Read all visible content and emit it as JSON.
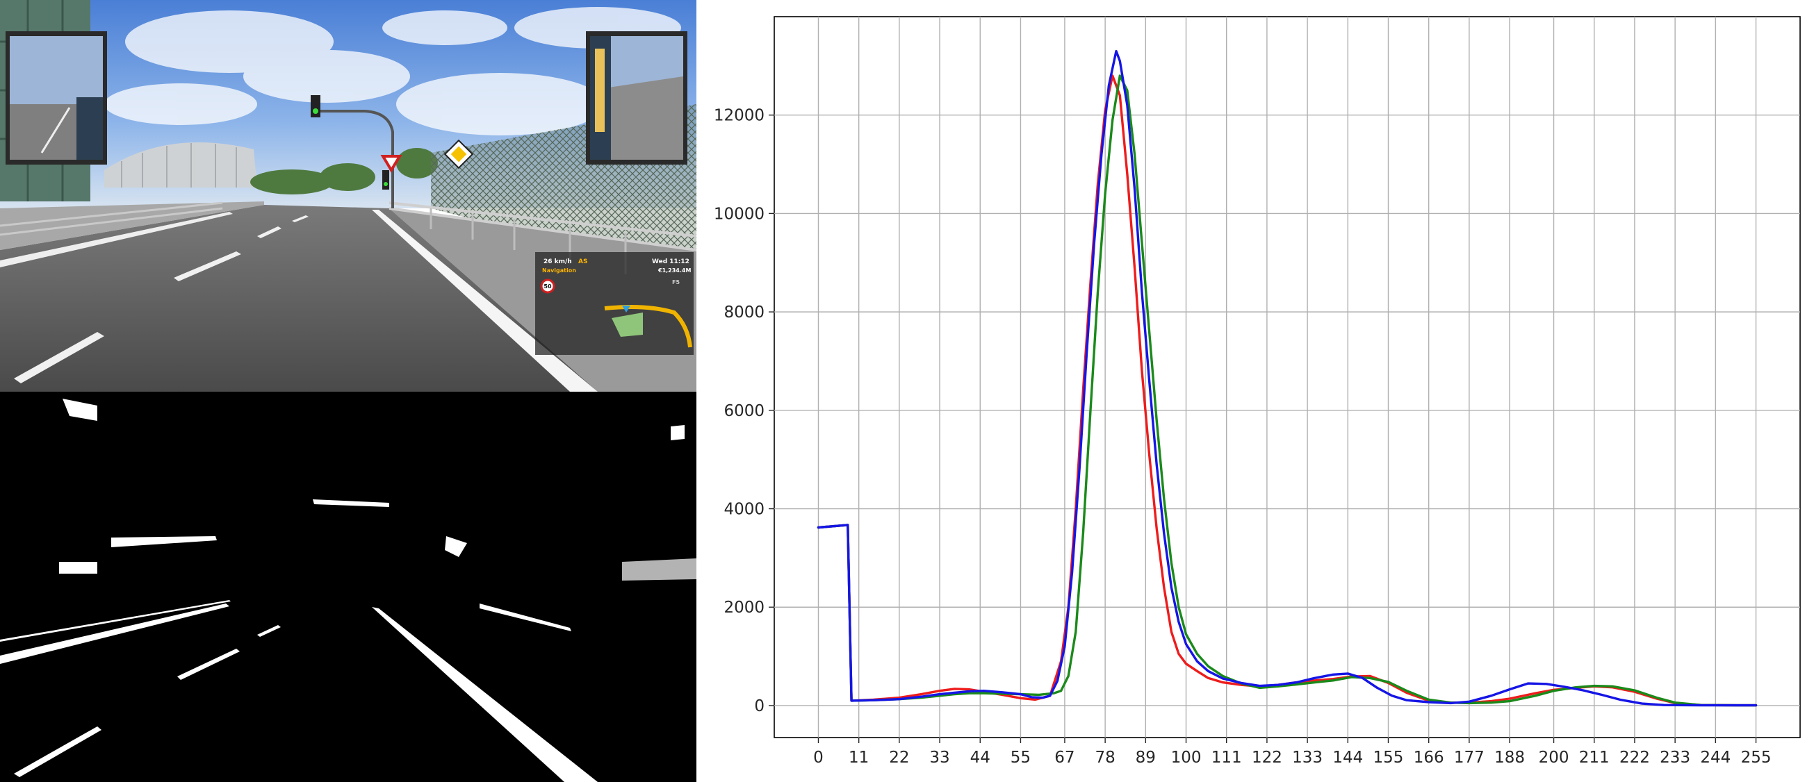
{
  "game_hud": {
    "speed": "26 km/h",
    "cruise": "AS",
    "day_time": "Wed 11:12",
    "navigation_label": "Navigation",
    "money": "€1,234.4M",
    "speed_limit": "50",
    "zoom_hint": "F5"
  },
  "colors": {
    "red": "#ee1c1c",
    "green": "#1a8a1a",
    "blue": "#1515e6",
    "sky": "#6f9fe0",
    "road": "#595959",
    "hud_text_yellow": "#ffb400"
  },
  "chart_data": {
    "type": "line",
    "title": "",
    "xlabel": "",
    "ylabel": "",
    "xlim": [
      -12,
      267
    ],
    "ylim": [
      -650,
      14000
    ],
    "grid": true,
    "legend": "none",
    "xticks": [
      0,
      11,
      22,
      33,
      44,
      55,
      67,
      78,
      89,
      100,
      111,
      122,
      133,
      144,
      155,
      166,
      177,
      188,
      200,
      211,
      222,
      233,
      244,
      255
    ],
    "yticks": [
      0,
      2000,
      4000,
      6000,
      8000,
      10000,
      12000
    ],
    "series": [
      {
        "color": "red",
        "points": [
          [
            0,
            3620
          ],
          [
            8,
            3670
          ],
          [
            9,
            100
          ],
          [
            15,
            120
          ],
          [
            22,
            160
          ],
          [
            28,
            230
          ],
          [
            33,
            300
          ],
          [
            37,
            340
          ],
          [
            41,
            330
          ],
          [
            45,
            280
          ],
          [
            50,
            220
          ],
          [
            55,
            150
          ],
          [
            59,
            120
          ],
          [
            63,
            200
          ],
          [
            66,
            900
          ],
          [
            68,
            2000
          ],
          [
            70,
            4000
          ],
          [
            72,
            6400
          ],
          [
            74,
            8600
          ],
          [
            76,
            10600
          ],
          [
            78,
            12100
          ],
          [
            80,
            12800
          ],
          [
            82,
            12400
          ],
          [
            84,
            10800
          ],
          [
            86,
            8900
          ],
          [
            88,
            6800
          ],
          [
            90,
            5100
          ],
          [
            92,
            3600
          ],
          [
            94,
            2400
          ],
          [
            96,
            1500
          ],
          [
            98,
            1050
          ],
          [
            100,
            850
          ],
          [
            103,
            700
          ],
          [
            106,
            560
          ],
          [
            110,
            470
          ],
          [
            115,
            420
          ],
          [
            120,
            390
          ],
          [
            125,
            420
          ],
          [
            130,
            470
          ],
          [
            135,
            510
          ],
          [
            140,
            540
          ],
          [
            145,
            590
          ],
          [
            150,
            600
          ],
          [
            155,
            460
          ],
          [
            160,
            260
          ],
          [
            166,
            100
          ],
          [
            172,
            60
          ],
          [
            177,
            60
          ],
          [
            183,
            90
          ],
          [
            188,
            140
          ],
          [
            195,
            250
          ],
          [
            200,
            320
          ],
          [
            206,
            360
          ],
          [
            211,
            390
          ],
          [
            216,
            370
          ],
          [
            222,
            280
          ],
          [
            228,
            140
          ],
          [
            233,
            50
          ],
          [
            240,
            10
          ],
          [
            250,
            5
          ],
          [
            255,
            5
          ]
        ]
      },
      {
        "color": "green",
        "points": [
          [
            0,
            3620
          ],
          [
            8,
            3670
          ],
          [
            9,
            100
          ],
          [
            15,
            110
          ],
          [
            22,
            130
          ],
          [
            28,
            160
          ],
          [
            33,
            200
          ],
          [
            37,
            230
          ],
          [
            41,
            250
          ],
          [
            45,
            250
          ],
          [
            50,
            240
          ],
          [
            55,
            230
          ],
          [
            60,
            220
          ],
          [
            64,
            250
          ],
          [
            66,
            300
          ],
          [
            68,
            600
          ],
          [
            70,
            1500
          ],
          [
            72,
            3500
          ],
          [
            74,
            6000
          ],
          [
            76,
            8400
          ],
          [
            78,
            10400
          ],
          [
            80,
            11900
          ],
          [
            82,
            12800
          ],
          [
            84,
            12500
          ],
          [
            86,
            11200
          ],
          [
            88,
            9400
          ],
          [
            90,
            7600
          ],
          [
            92,
            5800
          ],
          [
            94,
            4200
          ],
          [
            96,
            2900
          ],
          [
            98,
            2000
          ],
          [
            100,
            1450
          ],
          [
            103,
            1050
          ],
          [
            106,
            800
          ],
          [
            110,
            600
          ],
          [
            115,
            450
          ],
          [
            120,
            360
          ],
          [
            125,
            390
          ],
          [
            130,
            430
          ],
          [
            135,
            470
          ],
          [
            140,
            510
          ],
          [
            145,
            580
          ],
          [
            150,
            560
          ],
          [
            155,
            480
          ],
          [
            160,
            300
          ],
          [
            166,
            120
          ],
          [
            172,
            60
          ],
          [
            177,
            50
          ],
          [
            183,
            60
          ],
          [
            188,
            90
          ],
          [
            195,
            200
          ],
          [
            200,
            300
          ],
          [
            206,
            370
          ],
          [
            211,
            400
          ],
          [
            216,
            390
          ],
          [
            222,
            310
          ],
          [
            228,
            160
          ],
          [
            233,
            60
          ],
          [
            240,
            10
          ],
          [
            250,
            5
          ],
          [
            255,
            5
          ]
        ]
      },
      {
        "color": "blue",
        "points": [
          [
            0,
            3620
          ],
          [
            8,
            3670
          ],
          [
            9,
            100
          ],
          [
            15,
            110
          ],
          [
            22,
            130
          ],
          [
            28,
            180
          ],
          [
            33,
            230
          ],
          [
            37,
            260
          ],
          [
            41,
            290
          ],
          [
            45,
            300
          ],
          [
            50,
            270
          ],
          [
            55,
            230
          ],
          [
            58,
            170
          ],
          [
            61,
            160
          ],
          [
            63,
            200
          ],
          [
            65,
            500
          ],
          [
            67,
            1200
          ],
          [
            69,
            2700
          ],
          [
            71,
            4800
          ],
          [
            73,
            7200
          ],
          [
            75,
            9400
          ],
          [
            77,
            11200
          ],
          [
            79,
            12600
          ],
          [
            81,
            13300
          ],
          [
            82,
            13100
          ],
          [
            84,
            12200
          ],
          [
            86,
            10500
          ],
          [
            88,
            8400
          ],
          [
            90,
            6600
          ],
          [
            92,
            4900
          ],
          [
            94,
            3500
          ],
          [
            96,
            2400
          ],
          [
            98,
            1700
          ],
          [
            100,
            1250
          ],
          [
            103,
            900
          ],
          [
            106,
            700
          ],
          [
            110,
            550
          ],
          [
            115,
            460
          ],
          [
            120,
            400
          ],
          [
            125,
            420
          ],
          [
            130,
            470
          ],
          [
            135,
            560
          ],
          [
            140,
            630
          ],
          [
            144,
            650
          ],
          [
            148,
            560
          ],
          [
            152,
            360
          ],
          [
            156,
            200
          ],
          [
            160,
            110
          ],
          [
            166,
            70
          ],
          [
            172,
            50
          ],
          [
            177,
            80
          ],
          [
            183,
            200
          ],
          [
            188,
            330
          ],
          [
            193,
            450
          ],
          [
            198,
            440
          ],
          [
            203,
            380
          ],
          [
            208,
            310
          ],
          [
            213,
            220
          ],
          [
            218,
            120
          ],
          [
            224,
            40
          ],
          [
            230,
            10
          ],
          [
            240,
            5
          ],
          [
            255,
            5
          ]
        ]
      }
    ]
  }
}
